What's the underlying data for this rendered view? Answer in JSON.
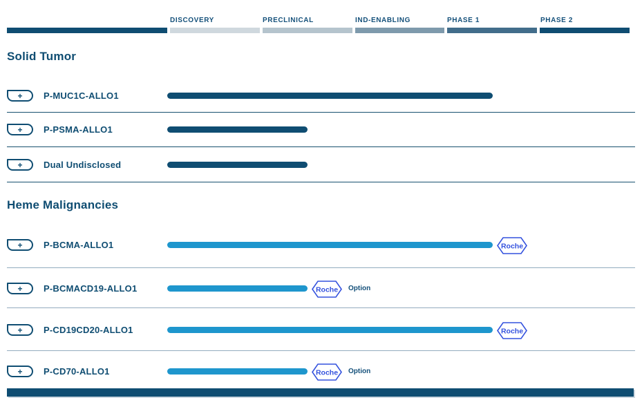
{
  "header": {
    "phases": [
      "DISCOVERY",
      "PRECLINICAL",
      "IND-ENABLING",
      "PHASE 1",
      "PHASE 2"
    ]
  },
  "labels": {
    "expand": "+",
    "partner": "Roche",
    "option": "Option"
  },
  "colors": {
    "navy": "#0F4D72",
    "heme_blue": "#1E96CD",
    "roche_blue": "#3452DE",
    "segment_colors": [
      "#0F4D72",
      "#CFD8DE",
      "#B5C4CD",
      "#7E9AAC",
      "#426D8B",
      "#0F4D72"
    ],
    "divider_navy": "#16506E",
    "divider_light": "#92ABBE"
  },
  "chart_data": {
    "type": "bar",
    "title": "Clinical pipeline phase-progress chart",
    "phases": [
      "Discovery",
      "Preclinical",
      "IND-Enabling",
      "Phase 1",
      "Phase 2"
    ],
    "legend_position": "none",
    "grid": false,
    "sections": [
      {
        "name": "Solid Tumor",
        "programs": [
          {
            "name": "P-MUC1C-ALLO1",
            "stage": "Phase 1",
            "progress_phases": 3.5,
            "bar_color": "navy",
            "partner": null,
            "option": false
          },
          {
            "name": "P-PSMA-ALLO1",
            "stage": "Preclinical",
            "progress_phases": 1.5,
            "bar_color": "navy",
            "partner": null,
            "option": false
          },
          {
            "name": "Dual Undisclosed",
            "stage": "Preclinical",
            "progress_phases": 1.5,
            "bar_color": "navy",
            "partner": null,
            "option": false
          }
        ]
      },
      {
        "name": "Heme Malignancies",
        "programs": [
          {
            "name": "P-BCMA-ALLO1",
            "stage": "Phase 1",
            "progress_phases": 3.5,
            "bar_color": "heme_blue",
            "partner": "Roche",
            "option": false
          },
          {
            "name": "P-BCMACD19-ALLO1",
            "stage": "Preclinical",
            "progress_phases": 1.5,
            "bar_color": "heme_blue",
            "partner": "Roche",
            "option": true
          },
          {
            "name": "P-CD19CD20-ALLO1",
            "stage": "Phase 1",
            "progress_phases": 3.5,
            "bar_color": "heme_blue",
            "partner": "Roche",
            "option": false
          },
          {
            "name": "P-CD70-ALLO1",
            "stage": "Preclinical",
            "progress_phases": 1.5,
            "bar_color": "heme_blue",
            "partner": "Roche",
            "option": true
          }
        ]
      }
    ]
  }
}
